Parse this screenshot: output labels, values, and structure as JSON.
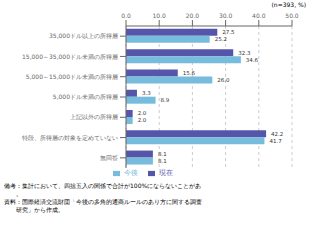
{
  "chart_data": {
    "type": "bar",
    "orientation": "horizontal",
    "categories": [
      "35,000ドル以上の所得層",
      "15,000～35,000ドル未満の所得層",
      "5,000～15,000ドル未満の所得層",
      "5,000ドル未満の所得層",
      "上記以外の所得層",
      "特段、所得層の対象を定めていない",
      "無回答"
    ],
    "series": [
      {
        "name": "現在",
        "color": "#5555aa",
        "values": [
          27.5,
          32.3,
          15.6,
          3.3,
          2.0,
          42.2,
          8.1
        ],
        "value_labels": [
          "27.5",
          "32.3",
          "15.6",
          "3.3",
          "2.0",
          "42.2",
          "8.1"
        ]
      },
      {
        "name": "今後",
        "color": "#77bbdd",
        "values": [
          25.2,
          34.6,
          26.0,
          8.9,
          2.0,
          41.7,
          8.1
        ],
        "value_labels": [
          "25.2",
          "34.6",
          "26.0",
          "8.9",
          "2.0",
          "41.7",
          "8.1"
        ]
      }
    ],
    "xlim": [
      0,
      50
    ],
    "xticks": [
      {
        "value": 0,
        "label": "0.0"
      },
      {
        "value": 10,
        "label": "10.0"
      },
      {
        "value": 20,
        "label": "20.0"
      },
      {
        "value": 30,
        "label": "30.0"
      },
      {
        "value": 40,
        "label": "40.0"
      },
      {
        "value": 50,
        "label": "50.0"
      }
    ],
    "grid": true,
    "legend": "bottom",
    "data_labels": true,
    "annotations": [
      "(n=393, %)",
      "備考：集計において、四捨五入の関係で合計が100%にならないことがあ",
      "　　。",
      "資料：国際経済交流財団「今後の多角的通商ルールのあり方に関する調査",
      "　　研究」から作成。"
    ]
  }
}
